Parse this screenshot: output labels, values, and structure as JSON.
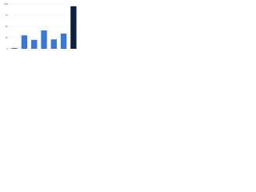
{
  "chart_data": {
    "type": "bar",
    "categories": [
      null,
      null,
      null,
      null,
      null,
      null,
      null
    ],
    "values": [
      2,
      30,
      20,
      41,
      21,
      34,
      95
    ],
    "colors": [
      "#3a78d8",
      "#3a78d8",
      "#3a78d8",
      "#3a78d8",
      "#3a78d8",
      "#3a78d8",
      "#0d1f3c"
    ],
    "ylim": [
      0,
      100
    ],
    "yticks": [
      0,
      25,
      50,
      75,
      100
    ],
    "grid": true
  }
}
